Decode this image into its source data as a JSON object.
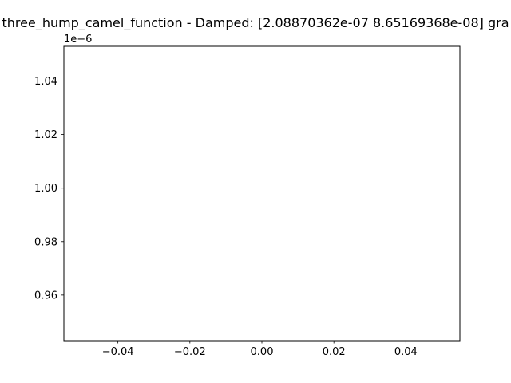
{
  "chart_data": {
    "type": "line",
    "title": "three_hump_camel_function - Damped: [2.08870362e-07 8.65169368e-08] gra",
    "xlabel": "",
    "ylabel": "",
    "xlim": [
      -0.055,
      0.055
    ],
    "ylim": [
      0.94297,
      1.05297
    ],
    "y_offset_label": "1e−6",
    "x_ticks": [
      {
        "value": -0.04,
        "label": "−0.04"
      },
      {
        "value": -0.02,
        "label": "−0.02"
      },
      {
        "value": 0.0,
        "label": "0.00"
      },
      {
        "value": 0.02,
        "label": "0.02"
      },
      {
        "value": 0.04,
        "label": "0.04"
      }
    ],
    "y_ticks": [
      {
        "value": 0.96,
        "label": "0.96"
      },
      {
        "value": 0.98,
        "label": "0.98"
      },
      {
        "value": 1.0,
        "label": "1.00"
      },
      {
        "value": 1.02,
        "label": "1.02"
      },
      {
        "value": 1.04,
        "label": "1.04"
      }
    ],
    "series": [],
    "grid": false,
    "colors": {
      "axes": "#000000",
      "background": "#ffffff"
    }
  }
}
